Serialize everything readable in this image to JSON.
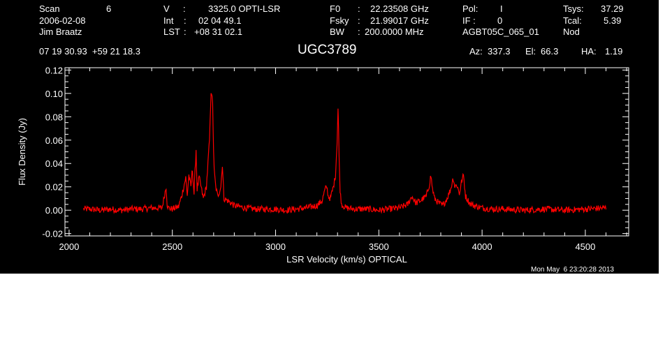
{
  "header": {
    "row1": {
      "scan_label": "Scan",
      "scan_value": "6",
      "v_label": "V",
      "v_value": "3325.0 OPTI-LSR",
      "f0_label": "F0",
      "f0_value": "22.23508 GHz",
      "pol_label": "Pol:",
      "pol_value": "I",
      "tsys_label": "Tsys:",
      "tsys_value": "37.29"
    },
    "row2": {
      "date": "2006-02-08",
      "int_label": "Int",
      "int_value": "02 04 49.1",
      "fsky_label": "Fsky",
      "fsky_value": "21.99017 GHz",
      "if_label": "IF :",
      "if_value": "0",
      "tcal_label": "Tcal:",
      "tcal_value": "5.39"
    },
    "row3": {
      "observer": "Jim Braatz",
      "lst_label": "LST",
      "lst_value": "+08 31 02.1",
      "bw_label": "BW",
      "bw_value": "200.0000 MHz",
      "project": "AGBT05C_065_01",
      "procedure": "Nod"
    },
    "coords": "07 19 30.93  +59 21 18.3",
    "source": "UGC3789",
    "az_label": "Az:",
    "az_value": "337.3",
    "el_label": "El:",
    "el_value": "66.3",
    "ha_label": "HA:",
    "ha_value": "1.19"
  },
  "timestamp": "Mon May  6 23:20:28 2013",
  "colors": {
    "background": "#000000",
    "axes": "#ffffff",
    "trace": "#ff0000"
  },
  "chart_data": {
    "type": "line",
    "xlabel": "LSR Velocity (km/s) OPTICAL",
    "ylabel": "Flux Density (Jy)",
    "xlim": [
      1980,
      4710
    ],
    "ylim": [
      -0.022,
      0.122
    ],
    "xticks": [
      2000,
      2500,
      3000,
      3500,
      4000,
      4500
    ],
    "yticks": [
      -0.02,
      0.0,
      0.02,
      0.04,
      0.06,
      0.08,
      0.1,
      0.12
    ],
    "ytick_labels": [
      "-0.02",
      "0.00",
      "0.02",
      "0.04",
      "0.06",
      "0.08",
      "0.10",
      "0.12"
    ],
    "series": [
      {
        "x": [
          2070,
          2100,
          2150,
          2200,
          2250,
          2300,
          2350,
          2400,
          2450,
          2470,
          2475,
          2480,
          2500,
          2530,
          2545,
          2555,
          2565,
          2572,
          2580,
          2590,
          2597,
          2605,
          2615,
          2620,
          2630,
          2650,
          2665,
          2680,
          2688,
          2695,
          2702,
          2710,
          2720,
          2735,
          2742,
          2750,
          2770,
          2800,
          2850,
          2900,
          2950,
          3000,
          3050,
          3100,
          3150,
          3200,
          3225,
          3240,
          3248,
          3255,
          3265,
          3280,
          3290,
          3297,
          3303,
          3308,
          3313,
          3320,
          3340,
          3380,
          3450,
          3500,
          3550,
          3600,
          3640,
          3660,
          3680,
          3700,
          3730,
          3745,
          3752,
          3760,
          3770,
          3790,
          3810,
          3830,
          3848,
          3860,
          3868,
          3878,
          3890,
          3900,
          3910,
          3920,
          3940,
          3960,
          4000,
          4050,
          4100,
          4200,
          4300,
          4400,
          4500,
          4600
        ],
        "y": [
          0.001,
          0.001,
          0.0,
          0.001,
          0.0,
          0.001,
          0.001,
          0.002,
          0.002,
          0.02,
          0.005,
          0.002,
          0.001,
          0.003,
          0.012,
          0.02,
          0.028,
          0.012,
          0.03,
          0.02,
          0.036,
          0.014,
          0.052,
          0.018,
          0.028,
          0.01,
          0.02,
          0.06,
          0.105,
          0.09,
          0.035,
          0.02,
          0.012,
          0.02,
          0.04,
          0.01,
          0.008,
          0.004,
          0.002,
          0.001,
          0.001,
          0.001,
          0.0,
          0.001,
          0.002,
          0.004,
          0.008,
          0.018,
          0.02,
          0.012,
          0.01,
          0.02,
          0.03,
          0.055,
          0.09,
          0.04,
          0.015,
          0.005,
          0.002,
          0.001,
          0.001,
          0.0,
          0.001,
          0.002,
          0.005,
          0.012,
          0.006,
          0.008,
          0.012,
          0.022,
          0.03,
          0.018,
          0.01,
          0.006,
          0.004,
          0.01,
          0.018,
          0.028,
          0.02,
          0.022,
          0.014,
          0.024,
          0.03,
          0.012,
          0.006,
          0.004,
          0.002,
          0.001,
          0.001,
          0.0,
          0.001,
          0.0,
          0.001,
          0.002
        ]
      }
    ]
  }
}
